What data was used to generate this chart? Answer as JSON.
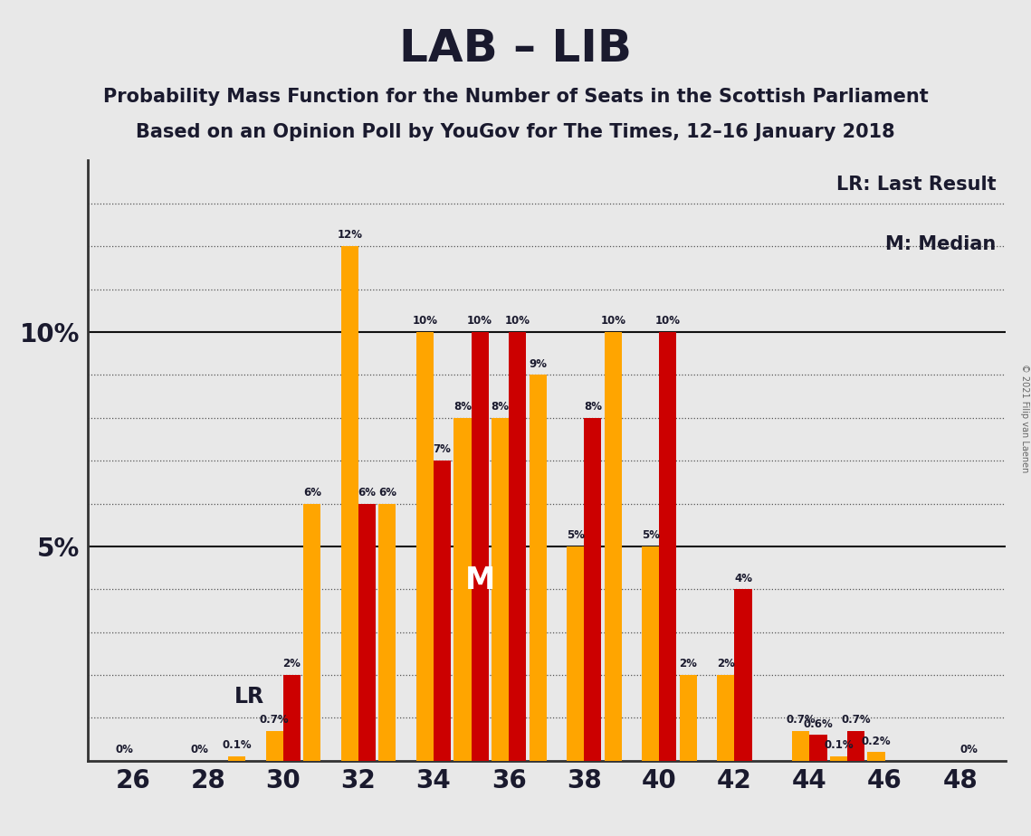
{
  "title": "LAB – LIB",
  "subtitle1": "Probability Mass Function for the Number of Seats in the Scottish Parliament",
  "subtitle2": "Based on an Opinion Poll by YouGov for The Times, 12–16 January 2018",
  "copyright": "© 2021 Filip van Laenen",
  "legend_lr": "LR: Last Result",
  "legend_m": "M: Median",
  "background_color": "#e8e8e8",
  "bar_color_lr": "#FFA500",
  "bar_color_red": "#CC0000",
  "annotation_color": "#1a1a2e",
  "white": "#ffffff",
  "seats": [
    26,
    27,
    28,
    29,
    30,
    31,
    32,
    33,
    34,
    35,
    36,
    37,
    38,
    39,
    40,
    41,
    42,
    43,
    44,
    45,
    46,
    47,
    48
  ],
  "lr_values": [
    0.0,
    0.0,
    0.0,
    0.1,
    0.7,
    6.0,
    12.0,
    6.0,
    10.0,
    8.0,
    8.0,
    9.0,
    5.0,
    10.0,
    5.0,
    2.0,
    2.0,
    0.0,
    0.7,
    0.1,
    0.2,
    0.0,
    0.0
  ],
  "red_values": [
    0.0,
    0.0,
    0.0,
    0.0,
    2.0,
    0.0,
    6.0,
    0.0,
    7.0,
    10.0,
    10.0,
    0.0,
    8.0,
    0.0,
    10.0,
    0.0,
    4.0,
    0.0,
    0.6,
    0.7,
    0.0,
    0.0,
    0.0
  ],
  "lr_seat": 30,
  "median_bar_seat": 35,
  "median_is_red": true,
  "ylim": [
    0,
    14
  ],
  "xticks": [
    26,
    28,
    30,
    32,
    34,
    36,
    38,
    40,
    42,
    44,
    46,
    48
  ]
}
